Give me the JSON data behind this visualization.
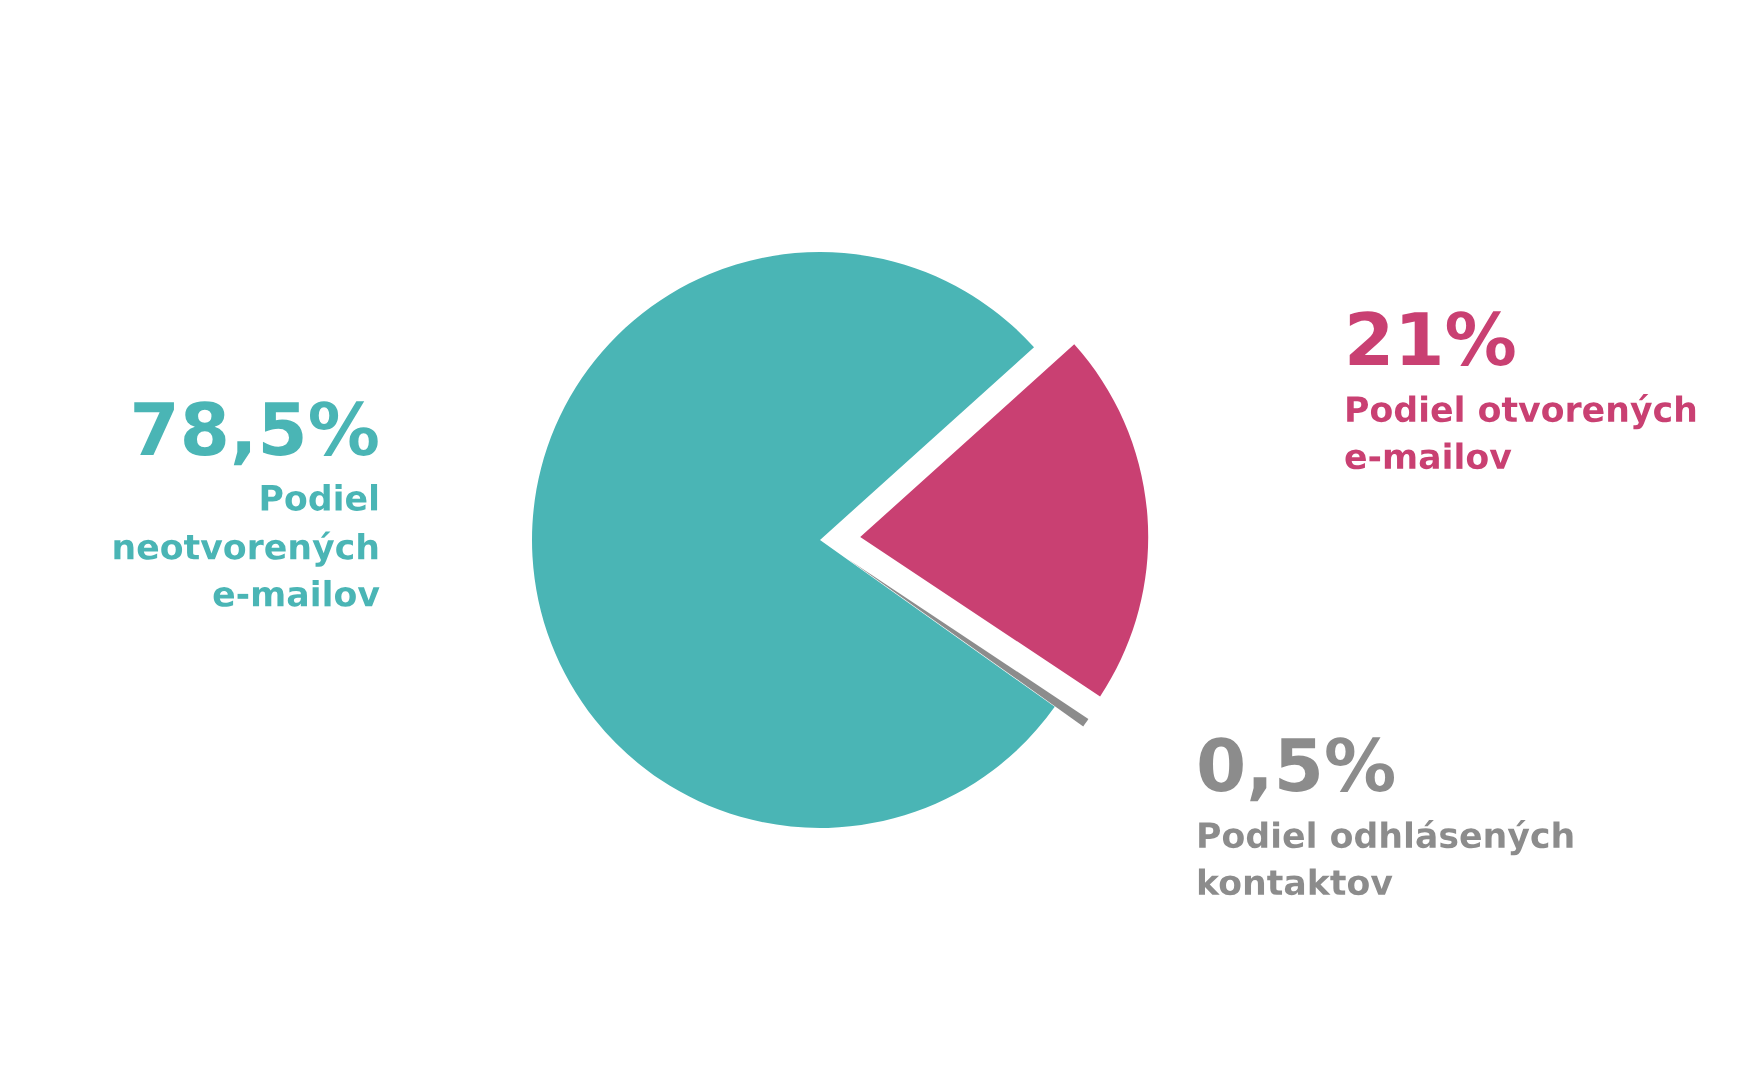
{
  "chart_data": {
    "type": "pie",
    "categories": [
      "Podiel\nneotvorených\ne-mailov",
      "Podiel otvorených\ne-mailov",
      "Podiel odhlásených\nkontaktov"
    ],
    "values": [
      78.5,
      21,
      0.5
    ],
    "value_labels": [
      "78,5%",
      "21%",
      "0,5%"
    ],
    "colors": [
      "#4ab5b5",
      "#c94072",
      "#8c8c8c"
    ],
    "legend": false
  }
}
